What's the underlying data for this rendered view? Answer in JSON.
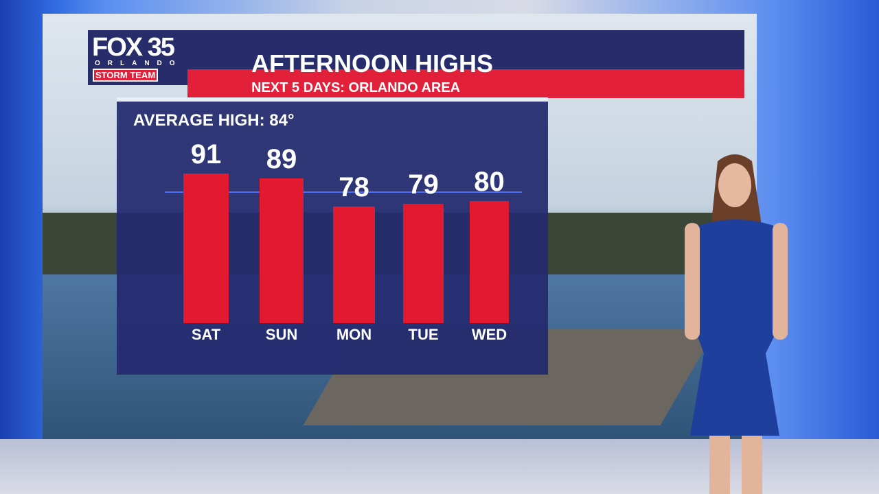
{
  "header": {
    "logo_text": "FOX 35",
    "logo_city": "ORLANDO",
    "logo_team": "STORM TEAM",
    "title": "AFTERNOON HIGHS",
    "subtitle": "NEXT 5 DAYS: ORLANDO AREA"
  },
  "colors": {
    "navy": "#262d6a",
    "red": "#e2203a",
    "bar": "#e3192f",
    "average_line": "#4f6ef0"
  },
  "chart_data": {
    "type": "bar",
    "title": "AFTERNOON HIGHS",
    "subtitle": "NEXT 5 DAYS: ORLANDO AREA",
    "categories": [
      "SAT",
      "SUN",
      "MON",
      "TUE",
      "WED"
    ],
    "values": [
      91,
      89,
      78,
      79,
      80
    ],
    "value_labels": [
      "91",
      "89",
      "78",
      "79",
      "80"
    ],
    "reference_line": {
      "label": "AVERAGE HIGH: 84°",
      "value": 84
    },
    "grid": false
  }
}
